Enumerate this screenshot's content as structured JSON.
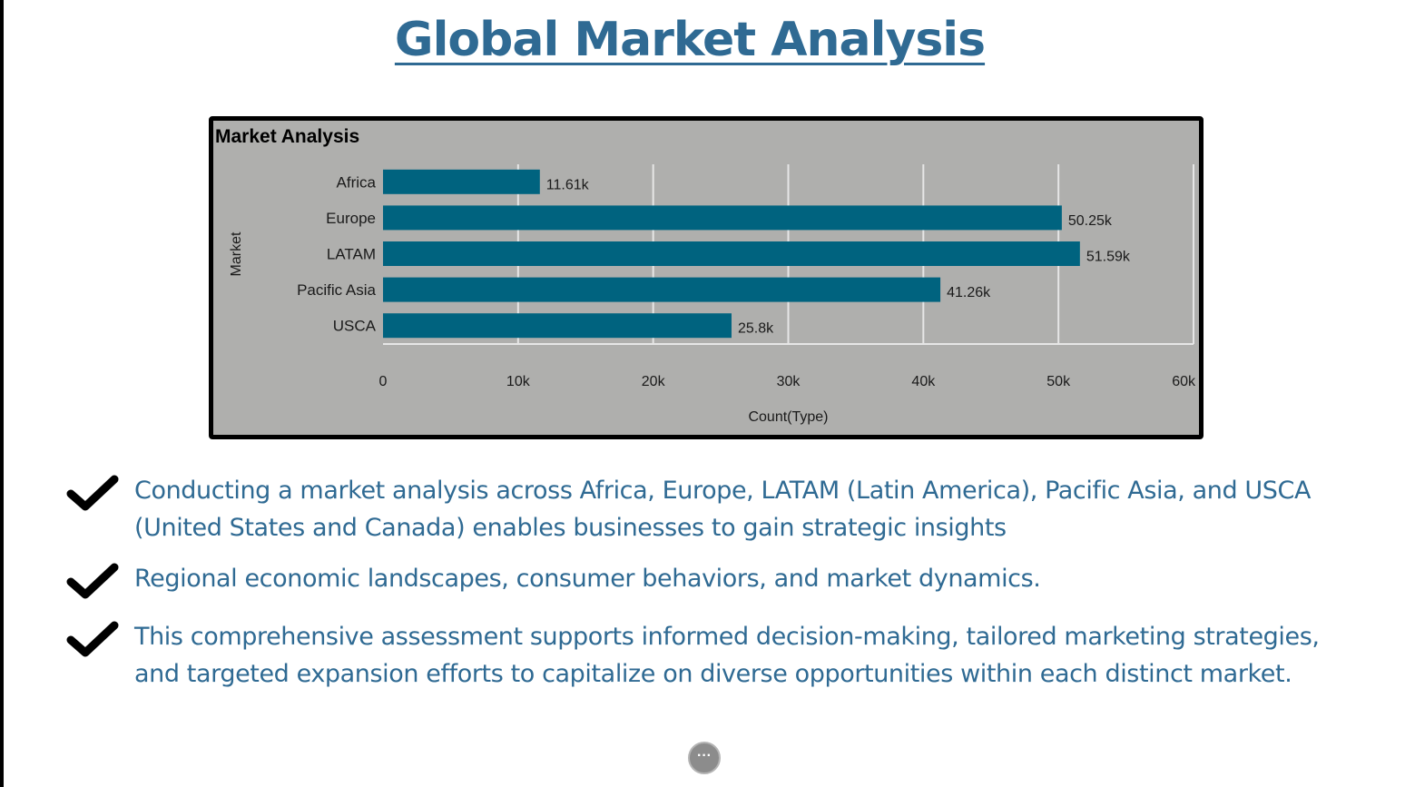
{
  "page": {
    "title": "Global Market Analysis"
  },
  "chart_data": {
    "type": "bar",
    "orientation": "horizontal",
    "title": "Market Analysis",
    "xlabel": "Count(Type)",
    "ylabel": "Market",
    "categories": [
      "Africa",
      "Europe",
      "LATAM",
      "Pacific Asia",
      "USCA"
    ],
    "values": [
      11610,
      50250,
      51590,
      41260,
      25800
    ],
    "value_labels": [
      "11.61k",
      "50.25k",
      "51.59k",
      "41.26k",
      "25.8k"
    ],
    "xlim": [
      0,
      60000
    ],
    "x_ticks": [
      0,
      10000,
      20000,
      30000,
      40000,
      50000,
      60000
    ],
    "x_tick_labels": [
      "0",
      "10k",
      "20k",
      "30k",
      "40k",
      "50k",
      "60k"
    ],
    "grid": true,
    "bar_color": "#00637f",
    "background_color": "#afafad"
  },
  "bullets": [
    {
      "text": "Conducting a market analysis across Africa, Europe, LATAM (Latin America), Pacific Asia, and USCA (United States and Canada) enables businesses to gain strategic insights",
      "icon": "checkmark-icon"
    },
    {
      "text": " Regional economic landscapes, consumer behaviors, and market dynamics.",
      "icon": "checkmark-icon"
    },
    {
      "text": "This comprehensive assessment supports informed decision-making, tailored marketing strategies, and targeted expansion efforts to capitalize on diverse opportunities within each distinct market.",
      "icon": "checkmark-icon"
    }
  ],
  "controls": {
    "more_options_glyph": "···",
    "more_options_icon": "ellipsis-icon"
  },
  "colors": {
    "accent": "#2f6a93",
    "bar": "#00637f"
  }
}
